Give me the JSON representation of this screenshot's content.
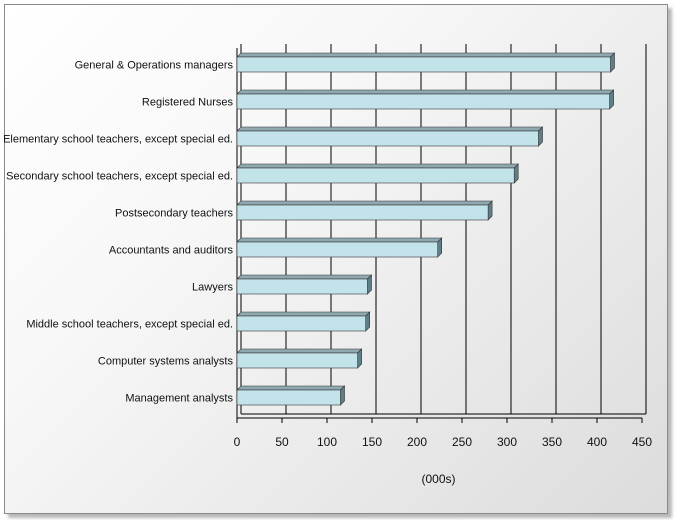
{
  "chart_data": {
    "type": "bar",
    "orientation": "horizontal",
    "categories": [
      "General & Operations managers",
      "Registered Nurses",
      "Elementary school teachers, except special ed.",
      "Secondary school teachers, except special ed.",
      "Postsecondary teachers",
      "Accountants and auditors",
      "Lawyers",
      "Middle school teachers, except special ed.",
      "Computer systems analysts",
      "Management analysts"
    ],
    "values": [
      415,
      414,
      335,
      308,
      279,
      223,
      145,
      143,
      134,
      115
    ],
    "xlabel": "(000s)",
    "xlim": [
      0,
      450
    ],
    "xticks": [
      "0",
      "50",
      "100",
      "150",
      "200",
      "250",
      "300",
      "350",
      "400",
      "450"
    ],
    "grid": true,
    "colors": {
      "bar_front": "#c3e3ea",
      "bar_top": "#8fa9b0",
      "bar_side": "#5f7f87",
      "grid": "#000000"
    }
  }
}
